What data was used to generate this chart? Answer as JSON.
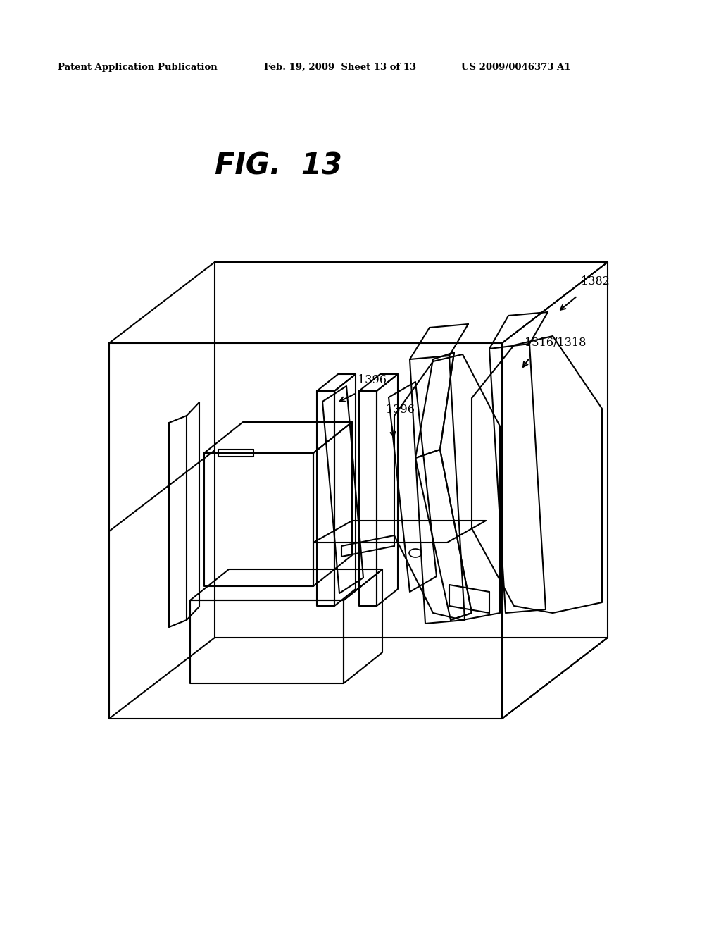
{
  "bg_color": "#ffffff",
  "header_left": "Patent Application Publication",
  "header_mid": "Feb. 19, 2009  Sheet 13 of 13",
  "header_right": "US 2009/0046373 A1",
  "figure_title": "FIG.  13",
  "label_1382": "1382",
  "label_1316_1318": "1316/1318",
  "label_1396_1": "1396",
  "label_1396_2": "1396",
  "line_color": "#000000",
  "header_fontsize": 9.5,
  "title_fontsize": 30,
  "label_fontsize": 11.5
}
